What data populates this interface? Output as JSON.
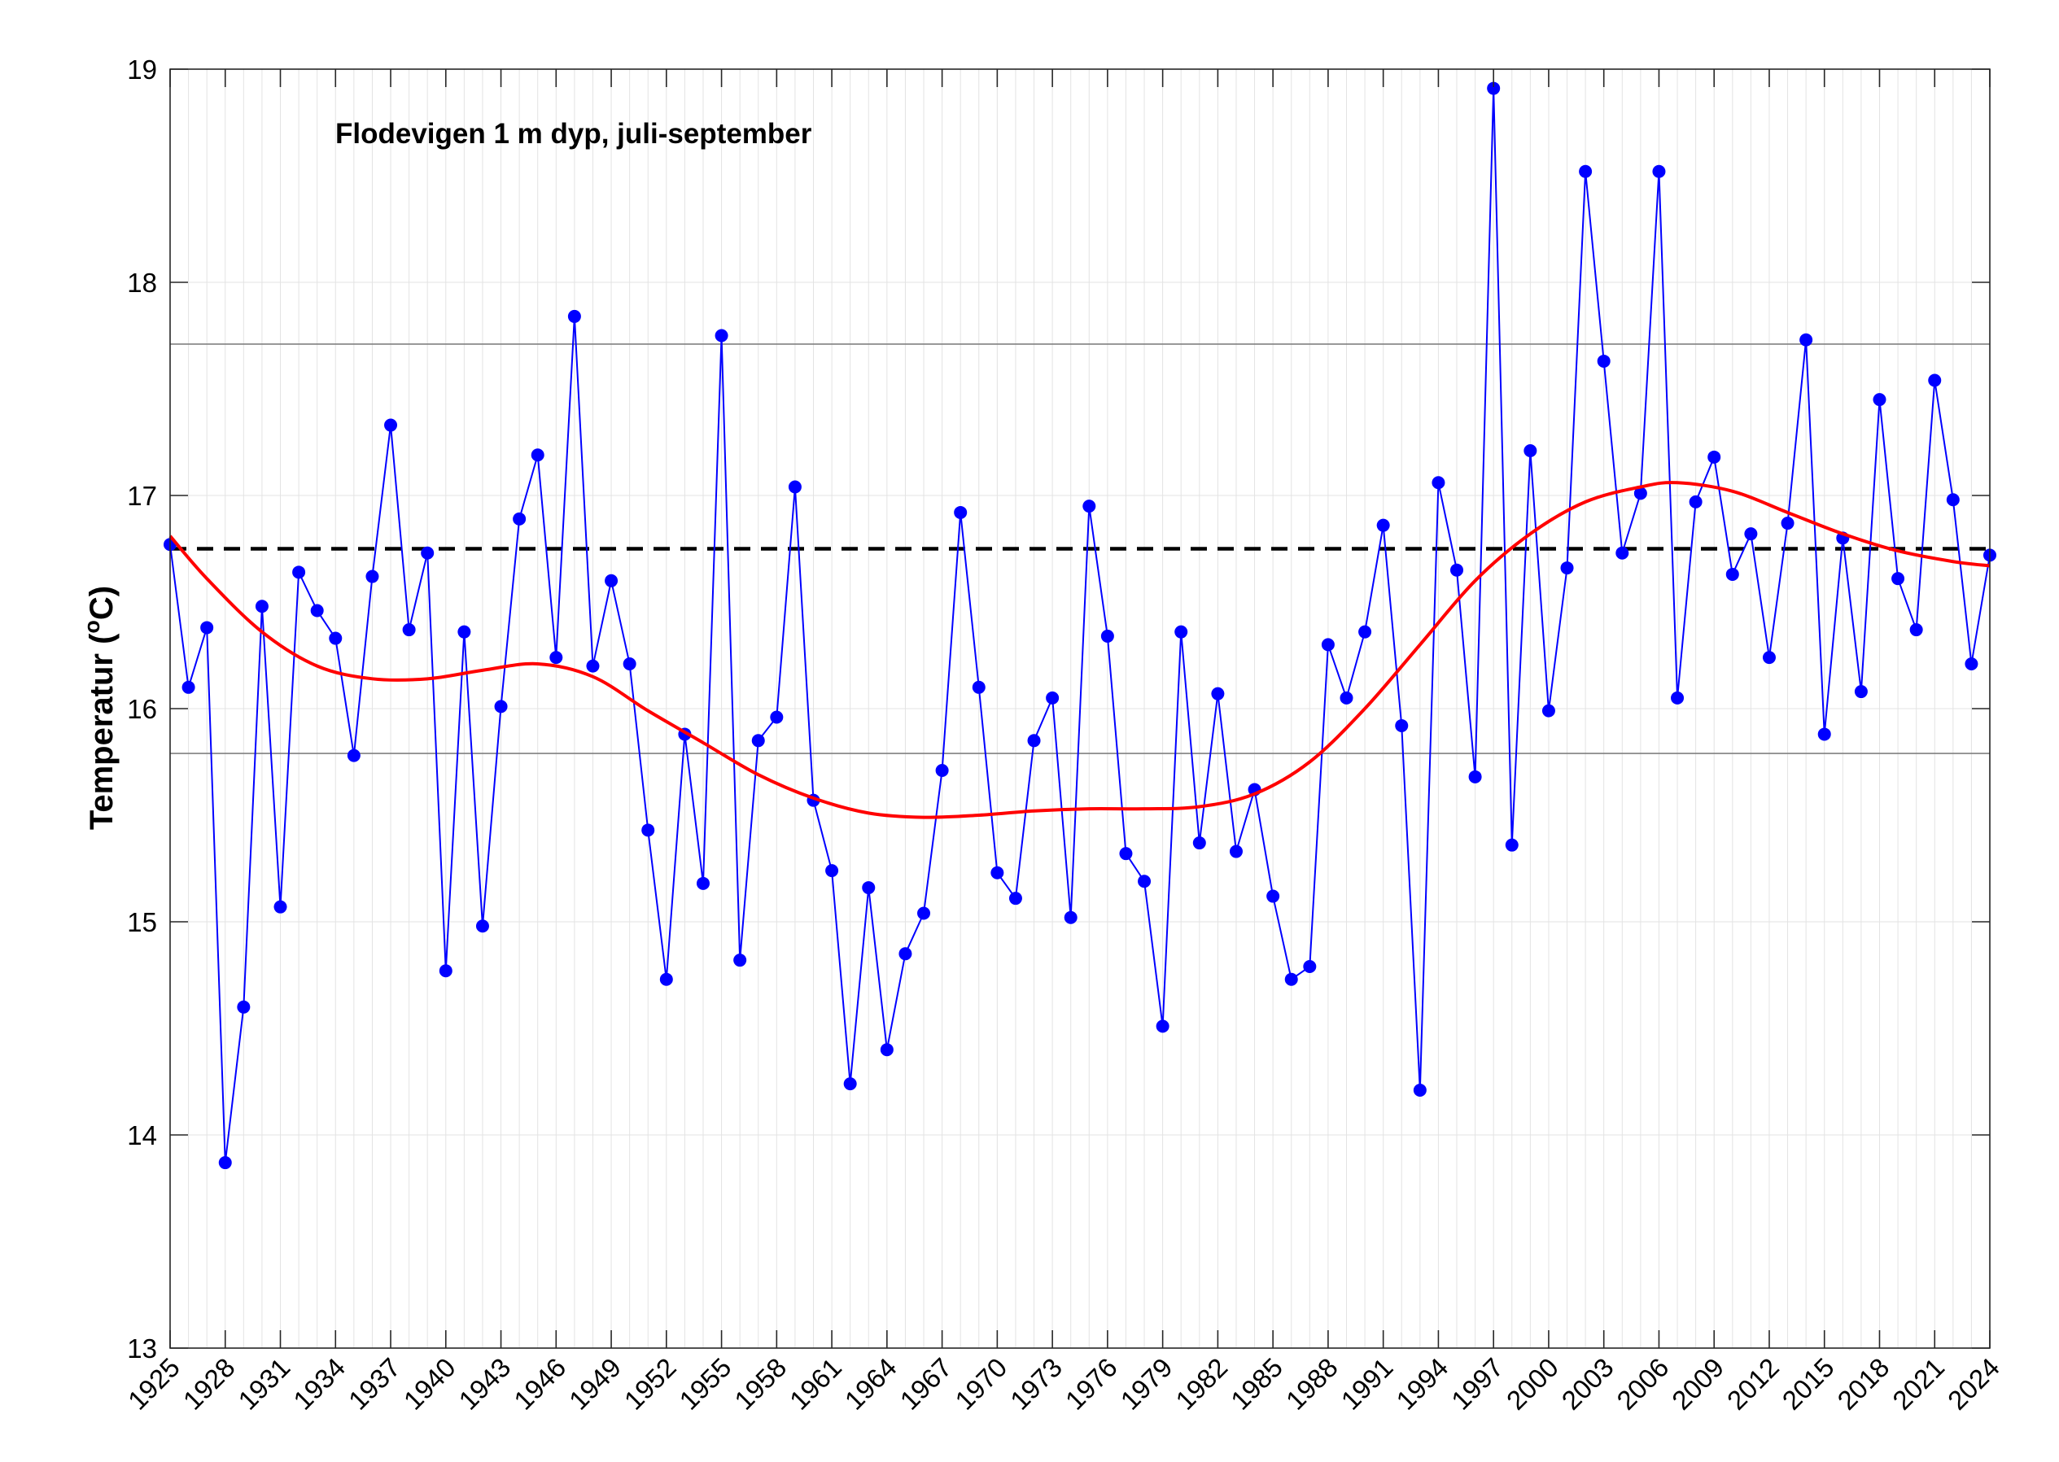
{
  "chart_data": {
    "type": "line",
    "title": "Flodevigen 1 m dyp, juli-september",
    "xlabel": "",
    "ylabel_main": "Temperatur (",
    "ylabel_sup": "o",
    "ylabel_end": "C)",
    "xlim": [
      1925,
      2024
    ],
    "ylim": [
      13,
      19
    ],
    "yticks": [
      13,
      14,
      15,
      16,
      17,
      18,
      19
    ],
    "xticks": [
      1925,
      1928,
      1931,
      1934,
      1937,
      1940,
      1943,
      1946,
      1949,
      1952,
      1955,
      1958,
      1961,
      1964,
      1967,
      1970,
      1973,
      1976,
      1979,
      1982,
      1985,
      1988,
      1991,
      1994,
      1997,
      2000,
      2003,
      2006,
      2009,
      2012,
      2015,
      2018,
      2021,
      2024
    ],
    "grid": true,
    "mean_line": 16.75,
    "std_lines": [
      15.79,
      17.71
    ],
    "colors": {
      "series": "#0000ff",
      "smooth": "#ff0000",
      "mean": "#000000",
      "std": "#808080",
      "grid": "#e3e3e3"
    },
    "series": [
      {
        "x": [
          1925,
          1926,
          1927,
          1928,
          1929,
          1930,
          1931,
          1932,
          1933,
          1934,
          1935,
          1936,
          1937,
          1938,
          1939,
          1940,
          1941,
          1942,
          1943,
          1944,
          1945,
          1946,
          1947,
          1948,
          1949,
          1950,
          1951,
          1952,
          1953,
          1954,
          1955,
          1956,
          1957,
          1958,
          1959,
          1960,
          1961,
          1962,
          1963,
          1964,
          1965,
          1966,
          1967,
          1968,
          1969,
          1970,
          1971,
          1972,
          1973,
          1974,
          1975,
          1976,
          1977,
          1978,
          1979,
          1980,
          1981,
          1982,
          1983,
          1984,
          1985,
          1986,
          1987,
          1988,
          1989,
          1990,
          1991,
          1992,
          1993,
          1994,
          1995,
          1996,
          1997,
          1998,
          1999,
          2000,
          2001,
          2002,
          2003,
          2004,
          2005,
          2006,
          2007,
          2008,
          2009,
          2010,
          2011,
          2012,
          2013,
          2014,
          2015,
          2016,
          2017,
          2018,
          2019,
          2020,
          2021,
          2022,
          2023,
          2024
        ],
        "values": [
          16.77,
          16.1,
          16.38,
          13.87,
          14.6,
          16.48,
          15.07,
          16.64,
          16.46,
          16.33,
          15.78,
          16.62,
          17.33,
          16.37,
          16.73,
          14.77,
          16.36,
          14.98,
          16.01,
          16.89,
          17.19,
          16.24,
          17.84,
          16.2,
          16.6,
          16.21,
          15.43,
          14.73,
          15.88,
          15.18,
          17.75,
          14.82,
          15.85,
          15.96,
          17.04,
          15.57,
          15.24,
          14.24,
          15.16,
          14.4,
          14.85,
          15.04,
          15.71,
          16.92,
          16.1,
          15.23,
          15.11,
          15.85,
          16.05,
          15.02,
          16.95,
          16.34,
          15.32,
          15.19,
          14.51,
          16.36,
          15.37,
          16.07,
          15.33,
          15.62,
          15.12,
          14.73,
          14.79,
          16.3,
          16.05,
          16.36,
          16.86,
          15.92,
          14.21,
          17.06,
          16.65,
          15.68,
          18.91,
          15.36,
          17.21,
          15.99,
          16.66,
          18.52,
          17.63,
          16.73,
          17.01,
          18.52,
          16.05,
          16.97,
          17.18,
          16.63,
          16.82,
          16.24,
          16.87,
          17.73,
          15.88,
          16.8,
          16.08,
          17.45,
          16.61,
          16.37,
          17.54,
          16.98,
          16.21,
          16.72
        ]
      },
      {
        "x": [
          1925,
          1927,
          1930,
          1933,
          1936,
          1939,
          1942,
          1945,
          1948,
          1951,
          1954,
          1957,
          1960,
          1963,
          1966,
          1969,
          1972,
          1975,
          1978,
          1981,
          1984,
          1987,
          1990,
          1993,
          1996,
          1999,
          2002,
          2005,
          2007,
          2010,
          2013,
          2016,
          2019,
          2022,
          2024
        ],
        "values": [
          16.81,
          16.61,
          16.36,
          16.2,
          16.14,
          16.14,
          16.18,
          16.21,
          16.15,
          15.99,
          15.84,
          15.69,
          15.58,
          15.51,
          15.49,
          15.5,
          15.52,
          15.53,
          15.53,
          15.54,
          15.6,
          15.75,
          16.0,
          16.3,
          16.6,
          16.82,
          16.97,
          17.04,
          17.06,
          17.02,
          16.92,
          16.82,
          16.74,
          16.69,
          16.67
        ]
      }
    ]
  }
}
